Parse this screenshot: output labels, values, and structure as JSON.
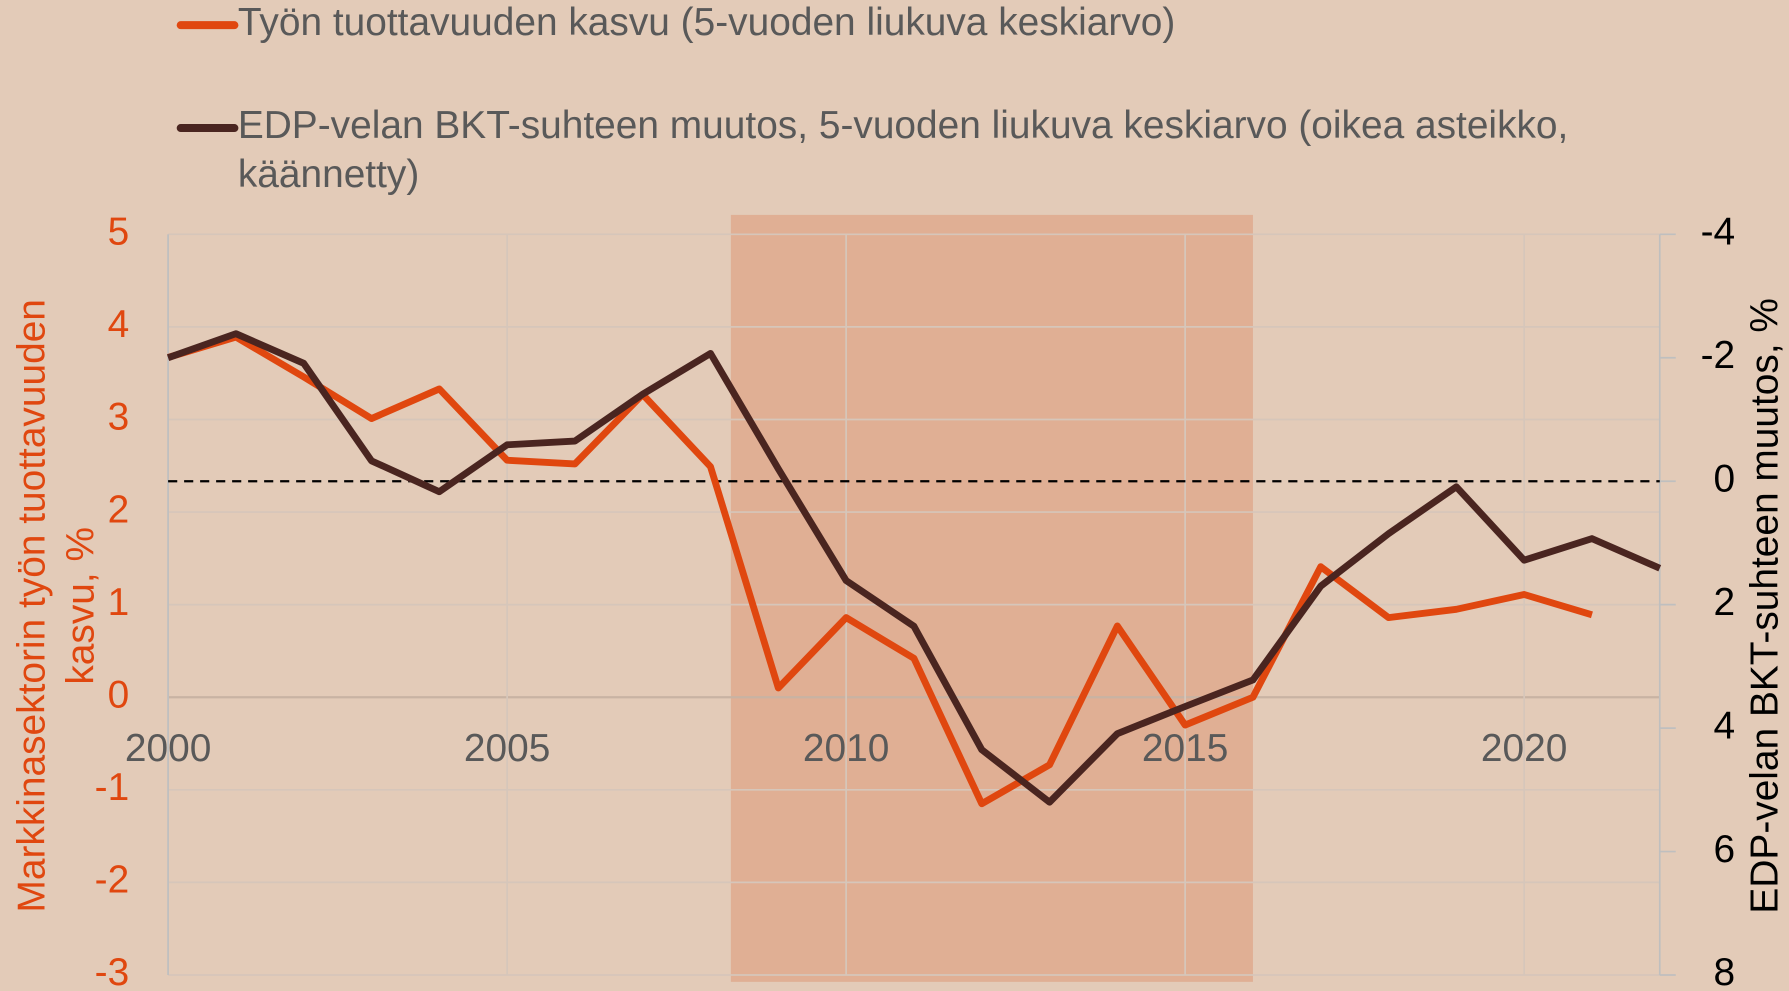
{
  "chart_data": {
    "type": "line",
    "legend_position": "top",
    "ylabel": "Markkinasektorin työn tuottavuuden kasvu, %",
    "y2label": "EDP-velan BKT-suhteen muutos, %",
    "x": [
      2000,
      2001,
      2002,
      2003,
      2004,
      2005,
      2006,
      2007,
      2008,
      2009,
      2010,
      2011,
      2012,
      2013,
      2014,
      2015,
      2016,
      2017,
      2018,
      2019,
      2020,
      2021,
      2022
    ],
    "series": [
      {
        "name": "Työn tuottavuuden kasvu (5-vuoden liukuva keskiarvo)",
        "color": "#e0470f",
        "axis": "y",
        "values": [
          3.67,
          3.89,
          3.46,
          3.01,
          3.33,
          2.56,
          2.52,
          3.27,
          2.49,
          0.1,
          0.86,
          0.42,
          -1.15,
          -0.73,
          0.77,
          -0.3,
          0.0,
          1.41,
          0.86,
          0.95,
          1.11,
          0.89,
          null
        ]
      },
      {
        "name": "EDP-velan BKT-suhteen muutos, 5-vuoden liukuva keskiarvo (oikea asteikko, käännetty)",
        "color": "#4a2520",
        "axis": "y2",
        "values": [
          -2.0,
          -2.39,
          -1.91,
          -0.33,
          0.17,
          -0.59,
          -0.65,
          -1.41,
          -2.07,
          -0.2,
          1.61,
          2.35,
          4.35,
          5.2,
          4.09,
          3.65,
          3.22,
          1.7,
          0.85,
          0.09,
          1.28,
          0.93,
          1.41
        ]
      }
    ],
    "xlim": [
      2000,
      2022
    ],
    "xticks": [
      2000,
      2005,
      2010,
      2015,
      2020
    ],
    "ylim": [
      -3,
      5
    ],
    "yticks": [
      -3,
      -2,
      -1,
      0,
      1,
      2,
      3,
      4,
      5
    ],
    "y2lim": [
      8,
      -4
    ],
    "y2ticks": [
      -4,
      -2,
      0,
      2,
      4,
      6,
      8
    ],
    "y2_inverted": true,
    "y2_reference_line": 0,
    "shaded_region": [
      2008.3,
      2016
    ],
    "shade_color": "#e0af94",
    "grid": true
  }
}
